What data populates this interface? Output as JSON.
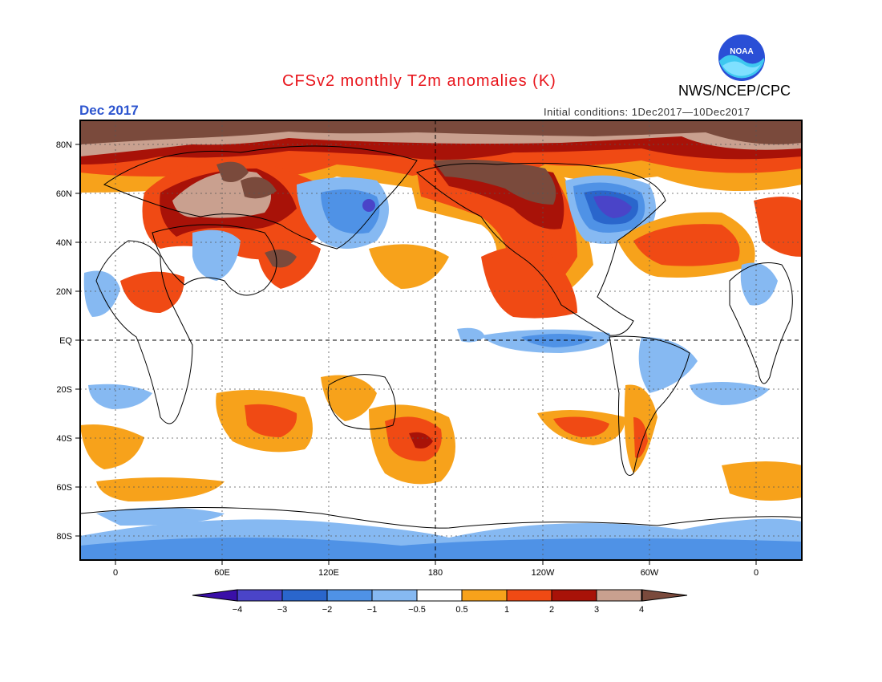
{
  "header": {
    "title": "CFSv2 monthly T2m anomalies (K)",
    "organization": "NWS/NCEP/CPC",
    "logo_text": "NOAA",
    "month": "Dec 2017",
    "initial_conditions": "Initial conditions: 1Dec2017—10Dec2017"
  },
  "axes": {
    "lat_labels": [
      "80N",
      "60N",
      "40N",
      "20N",
      "EQ",
      "20S",
      "40S",
      "60S",
      "80S"
    ],
    "lon_labels": [
      "0",
      "60E",
      "120E",
      "180",
      "120W",
      "60W",
      "0"
    ]
  },
  "colorbar": {
    "labels": [
      "−4",
      "−3",
      "−2",
      "−1",
      "−0.5",
      "0.5",
      "1",
      "2",
      "3",
      "4"
    ],
    "colors": [
      "#3a0fa8",
      "#4a44c8",
      "#2a66cc",
      "#4f92e6",
      "#86b9f2",
      "#ffffff",
      "#f7a21b",
      "#f04a14",
      "#a81208",
      "#c9a08f",
      "#7a4a3c"
    ]
  }
}
